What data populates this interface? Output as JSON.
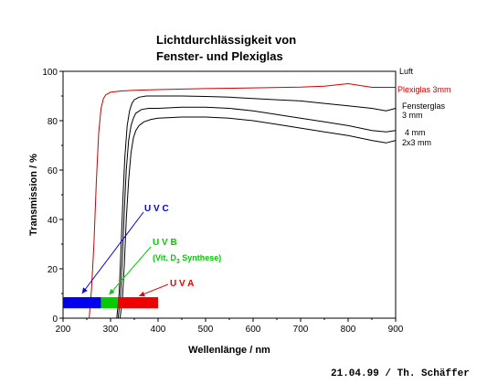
{
  "chart_data": {
    "type": "line",
    "title": [
      "Lichtdurchlässigkeit von",
      "Fenster- und Plexiglas"
    ],
    "xlabel": "Wellenlänge / nm",
    "ylabel": "Transmission / %",
    "xlim": [
      200,
      900
    ],
    "ylim": [
      0,
      100
    ],
    "xticks": [
      "200",
      "300",
      "400",
      "500",
      "600",
      "700",
      "800",
      "900"
    ],
    "yticks": [
      "0",
      "20",
      "40",
      "60",
      "80",
      "100"
    ],
    "series": [
      {
        "name": "Luft",
        "color": "#000000",
        "x": [
          200,
          900
        ],
        "y": [
          100,
          100
        ]
      },
      {
        "name": "Plexiglas 3mm",
        "color": "#cc0000",
        "x": [
          255,
          260,
          265,
          270,
          275,
          280,
          285,
          290,
          300,
          320,
          350,
          400,
          500,
          600,
          700,
          750,
          800,
          850,
          900
        ],
        "y": [
          0,
          12,
          30,
          55,
          75,
          85,
          89,
          90.5,
          91.5,
          92,
          92.3,
          92.6,
          93,
          93.3,
          93.6,
          94,
          95,
          93.5,
          93.5
        ]
      },
      {
        "name": "Fensterglas 3 mm",
        "color": "#000000",
        "x": [
          313,
          318,
          322,
          326,
          330,
          335,
          340,
          345,
          350,
          360,
          375,
          400,
          450,
          500,
          550,
          600,
          650,
          700,
          750,
          800,
          850,
          880,
          900
        ],
        "y": [
          0,
          10,
          28,
          48,
          65,
          78,
          84,
          87,
          88.5,
          89.5,
          90,
          90,
          90,
          89.8,
          89.5,
          89,
          88.5,
          88,
          87,
          86,
          85,
          84,
          85
        ]
      },
      {
        "name": "4 mm",
        "color": "#000000",
        "x": [
          316,
          321,
          325,
          329,
          333,
          338,
          343,
          348,
          353,
          365,
          380,
          400,
          450,
          500,
          550,
          600,
          650,
          700,
          750,
          800,
          850,
          880,
          900
        ],
        "y": [
          0,
          9,
          25,
          44,
          60,
          72,
          78,
          81,
          83,
          84.5,
          85,
          85,
          85.5,
          85.5,
          85,
          84,
          82.5,
          81,
          79.5,
          78,
          76,
          75.5,
          76
        ]
      },
      {
        "name": "2x3 mm",
        "color": "#000000",
        "x": [
          320,
          325,
          329,
          333,
          338,
          343,
          348,
          353,
          360,
          370,
          385,
          400,
          450,
          500,
          550,
          600,
          650,
          700,
          750,
          800,
          850,
          880,
          900
        ],
        "y": [
          0,
          8,
          22,
          40,
          56,
          67,
          73,
          76,
          78,
          79.5,
          80.5,
          81,
          81.5,
          81.5,
          81,
          80,
          78.5,
          77,
          75.5,
          74,
          72,
          71,
          72
        ]
      }
    ],
    "labels": {
      "luft": "Luft",
      "plexiglas": "Plexiglas 3mm",
      "fenster1": "Fensterglas",
      "fenster2": "3 mm",
      "mm4": "4 mm",
      "mm2x3": "2x3 mm"
    },
    "uv_bands": [
      {
        "name": "UVC",
        "label": "U V C",
        "from": 200,
        "to": 280,
        "color": "#0000ee"
      },
      {
        "name": "UVB",
        "label": "U V B",
        "sublabel_pre": "(Vit. D",
        "sublabel_sub": "3",
        "sublabel_post": " Synthese)",
        "from": 280,
        "to": 315,
        "color": "#00cc00"
      },
      {
        "name": "UVA",
        "label": "U V A",
        "from": 315,
        "to": 400,
        "color": "#ee0000"
      }
    ],
    "credit": "21.04.99 / Th. Schäffer"
  }
}
